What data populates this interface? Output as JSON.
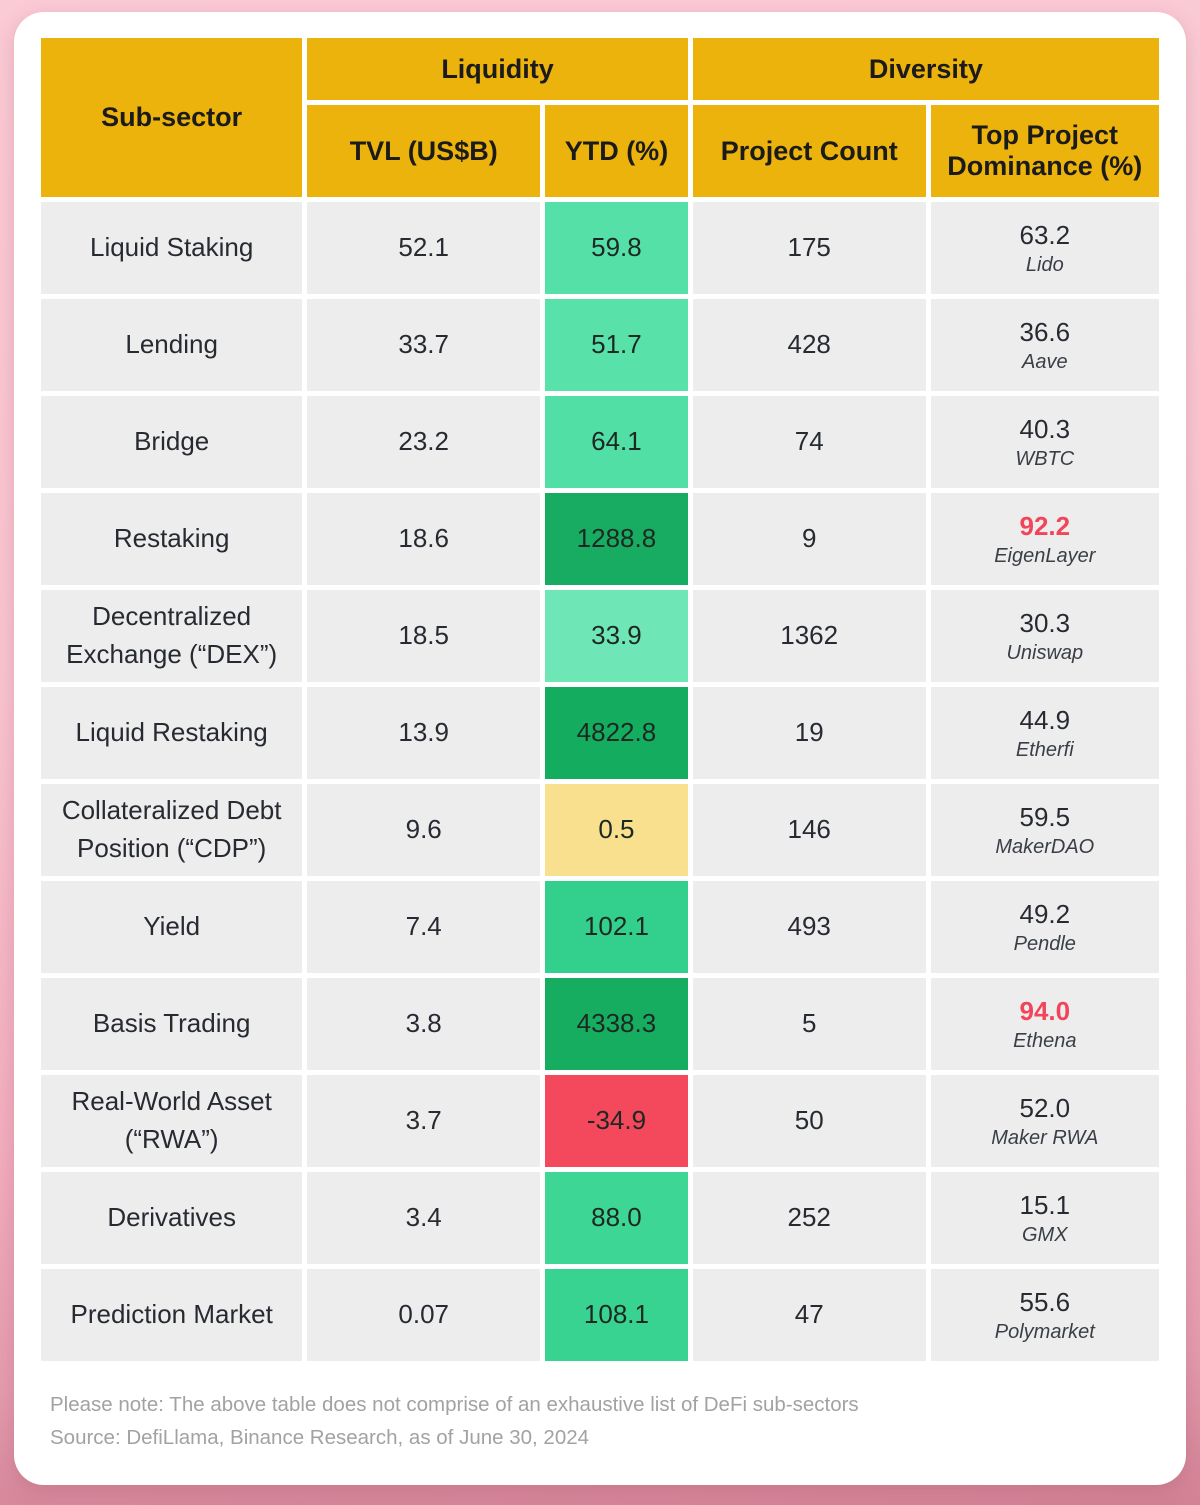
{
  "colors": {
    "header_bg": "#EDB30D",
    "row_bg": "#EDEDED",
    "card_bg": "#FFFFFF",
    "background_pink_top": "#FACAD5",
    "background_pink_bottom": "#D28194",
    "red_text": "#F2455A",
    "negative_bg": "#F4485D",
    "neutral_bg": "#F8E08E"
  },
  "chart_data": {
    "type": "table",
    "headers": {
      "sub_sector": "Sub-sector",
      "group_liquidity": "Liquidity",
      "group_diversity": "Diversity",
      "col_tvl": "TVL (US$B)",
      "col_ytd": "YTD (%)",
      "col_count": "Project Count",
      "col_dominance": "Top Project Dominance (%)"
    },
    "rows": [
      {
        "name": "Liquid Staking",
        "tvl": "52.1",
        "ytd": "59.8",
        "ytd_bg": "#55E0A7",
        "count": "175",
        "dominance": "63.2",
        "top_project": "Lido",
        "dominance_highlight": false
      },
      {
        "name": "Lending",
        "tvl": "33.7",
        "ytd": "51.7",
        "ytd_bg": "#58E1A9",
        "count": "428",
        "dominance": "36.6",
        "top_project": "Aave",
        "dominance_highlight": false
      },
      {
        "name": "Bridge",
        "tvl": "23.2",
        "ytd": "64.1",
        "ytd_bg": "#52DFA5",
        "count": "74",
        "dominance": "40.3",
        "top_project": "WBTC",
        "dominance_highlight": false
      },
      {
        "name": "Restaking",
        "tvl": "18.6",
        "ytd": "1288.8",
        "ytd_bg": "#17AC61",
        "count": "9",
        "dominance": "92.2",
        "top_project": "EigenLayer",
        "dominance_highlight": true
      },
      {
        "name": "Decentralized Exchange (“DEX”)",
        "tvl": "18.5",
        "ytd": "33.9",
        "ytd_bg": "#6EE6B6",
        "count": "1362",
        "dominance": "30.3",
        "top_project": "Uniswap",
        "dominance_highlight": false
      },
      {
        "name": "Liquid Restaking",
        "tvl": "13.9",
        "ytd": "4822.8",
        "ytd_bg": "#14AD60",
        "count": "19",
        "dominance": "44.9",
        "top_project": "Etherfi",
        "dominance_highlight": false
      },
      {
        "name": "Collateralized Debt Position (“CDP”)",
        "tvl": "9.6",
        "ytd": "0.5",
        "ytd_bg": "#F8E08E",
        "count": "146",
        "dominance": "59.5",
        "top_project": "MakerDAO",
        "dominance_highlight": false
      },
      {
        "name": "Yield",
        "tvl": "7.4",
        "ytd": "102.1",
        "ytd_bg": "#33CF8C",
        "count": "493",
        "dominance": "49.2",
        "top_project": "Pendle",
        "dominance_highlight": false
      },
      {
        "name": "Basis Trading",
        "tvl": "3.8",
        "ytd": "4338.3",
        "ytd_bg": "#16AD61",
        "count": "5",
        "dominance": "94.0",
        "top_project": "Ethena",
        "dominance_highlight": true
      },
      {
        "name": "Real-World Asset (“RWA”)",
        "tvl": "3.7",
        "ytd": "-34.9",
        "ytd_bg": "#F4485D",
        "count": "50",
        "dominance": "52.0",
        "top_project": "Maker RWA",
        "dominance_highlight": false
      },
      {
        "name": "Derivatives",
        "tvl": "3.4",
        "ytd": "88.0",
        "ytd_bg": "#3DD694",
        "count": "252",
        "dominance": "15.1",
        "top_project": "GMX",
        "dominance_highlight": false
      },
      {
        "name": "Prediction Market",
        "tvl": "0.07",
        "ytd": "108.1",
        "ytd_bg": "#38D390",
        "count": "47",
        "dominance": "55.6",
        "top_project": "Polymarket",
        "dominance_highlight": false
      }
    ]
  },
  "notes": {
    "line1": "Please note: The above table does not comprise of an exhaustive list of DeFi sub-sectors",
    "line2": "Source: DefiLlama, Binance Research, as of June 30, 2024"
  }
}
